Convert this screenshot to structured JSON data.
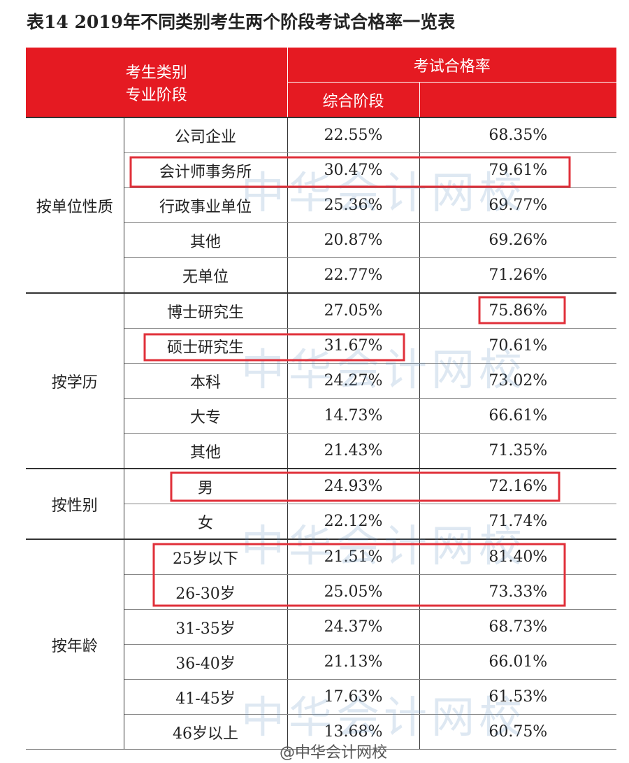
{
  "title": "表14  2019年不同类别考生两个阶段考试合格率一览表",
  "header": {
    "category": "考生类别",
    "stage": "专业阶段",
    "rate": "考试合格率",
    "comprehensive": "综合阶段"
  },
  "groups": [
    {
      "name": "按单位性质",
      "rows": [
        [
          "公司企业",
          "22.55%",
          "68.35%"
        ],
        [
          "会计师事务所",
          "30.47%",
          "79.61%"
        ],
        [
          "行政事业单位",
          "25.36%",
          "69.77%"
        ],
        [
          "其他",
          "20.87%",
          "69.26%"
        ],
        [
          "无单位",
          "22.77%",
          "71.26%"
        ]
      ]
    },
    {
      "name": "按学历",
      "rows": [
        [
          "博士研究生",
          "27.05%",
          "75.86%"
        ],
        [
          "硕士研究生",
          "31.67%",
          "70.61%"
        ],
        [
          "本科",
          "24.27%",
          "73.02%"
        ],
        [
          "大专",
          "14.73%",
          "66.61%"
        ],
        [
          "其他",
          "21.43%",
          "71.35%"
        ]
      ]
    },
    {
      "name": "按性别",
      "rows": [
        [
          "男",
          "24.93%",
          "72.16%"
        ],
        [
          "女",
          "22.12%",
          "71.74%"
        ]
      ]
    },
    {
      "name": "按年龄",
      "rows": [
        [
          "25岁以下",
          "21.51%",
          "81.40%"
        ],
        [
          "26-30岁",
          "25.05%",
          "73.33%"
        ],
        [
          "31-35岁",
          "24.37%",
          "68.73%"
        ],
        [
          "36-40岁",
          "21.13%",
          "66.01%"
        ],
        [
          "41-45岁",
          "17.63%",
          "61.53%"
        ],
        [
          "46岁以上",
          "13.68%",
          "60.75%"
        ]
      ]
    }
  ],
  "watermark": "中华会计网校",
  "weibo_mark": "@中华会计网校"
}
